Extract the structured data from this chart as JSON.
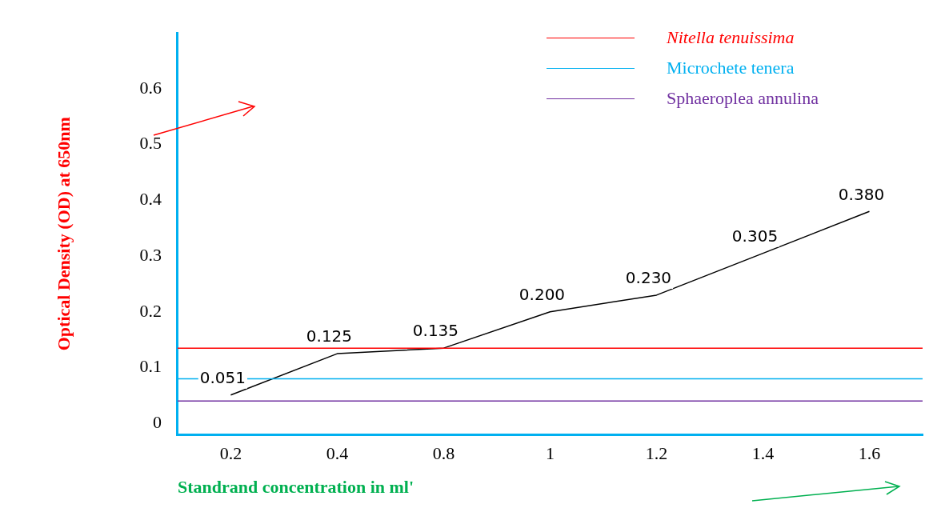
{
  "chart_data": {
    "type": "line",
    "xlabel": "Standrand concentration in ml'",
    "ylabel": "Optical Density (OD) at 650nm",
    "categories": [
      "0.2",
      "0.4",
      "0.8",
      "1",
      "1.2",
      "1.4",
      "1.6"
    ],
    "series": [
      {
        "color": "#000000",
        "values": [
          0.051,
          0.125,
          0.135,
          0.2,
          0.23,
          0.305,
          0.38
        ]
      }
    ],
    "value_labels": [
      "0.051",
      "0.125",
      "0.135",
      "0.200",
      "0.230",
      "0.305",
      "0.380"
    ],
    "marker": "none",
    "line_style": "solid",
    "ylim": [
      -0.02,
      0.7
    ],
    "yticks": [
      0,
      0.1,
      0.2,
      0.3,
      0.4,
      0.5,
      0.6
    ],
    "grid": false,
    "ref_lines": [
      {
        "axis": "y",
        "value": 0.135,
        "label": "Nitella tenuissima",
        "color": "#ff0000"
      },
      {
        "axis": "y",
        "value": 0.08,
        "label": "Microchete tenera",
        "color": "#00b0f0"
      },
      {
        "axis": "y",
        "value": 0.04,
        "label": "Sphaeroplea annulina",
        "color": "#7030a0"
      }
    ],
    "legend": "top right"
  }
}
